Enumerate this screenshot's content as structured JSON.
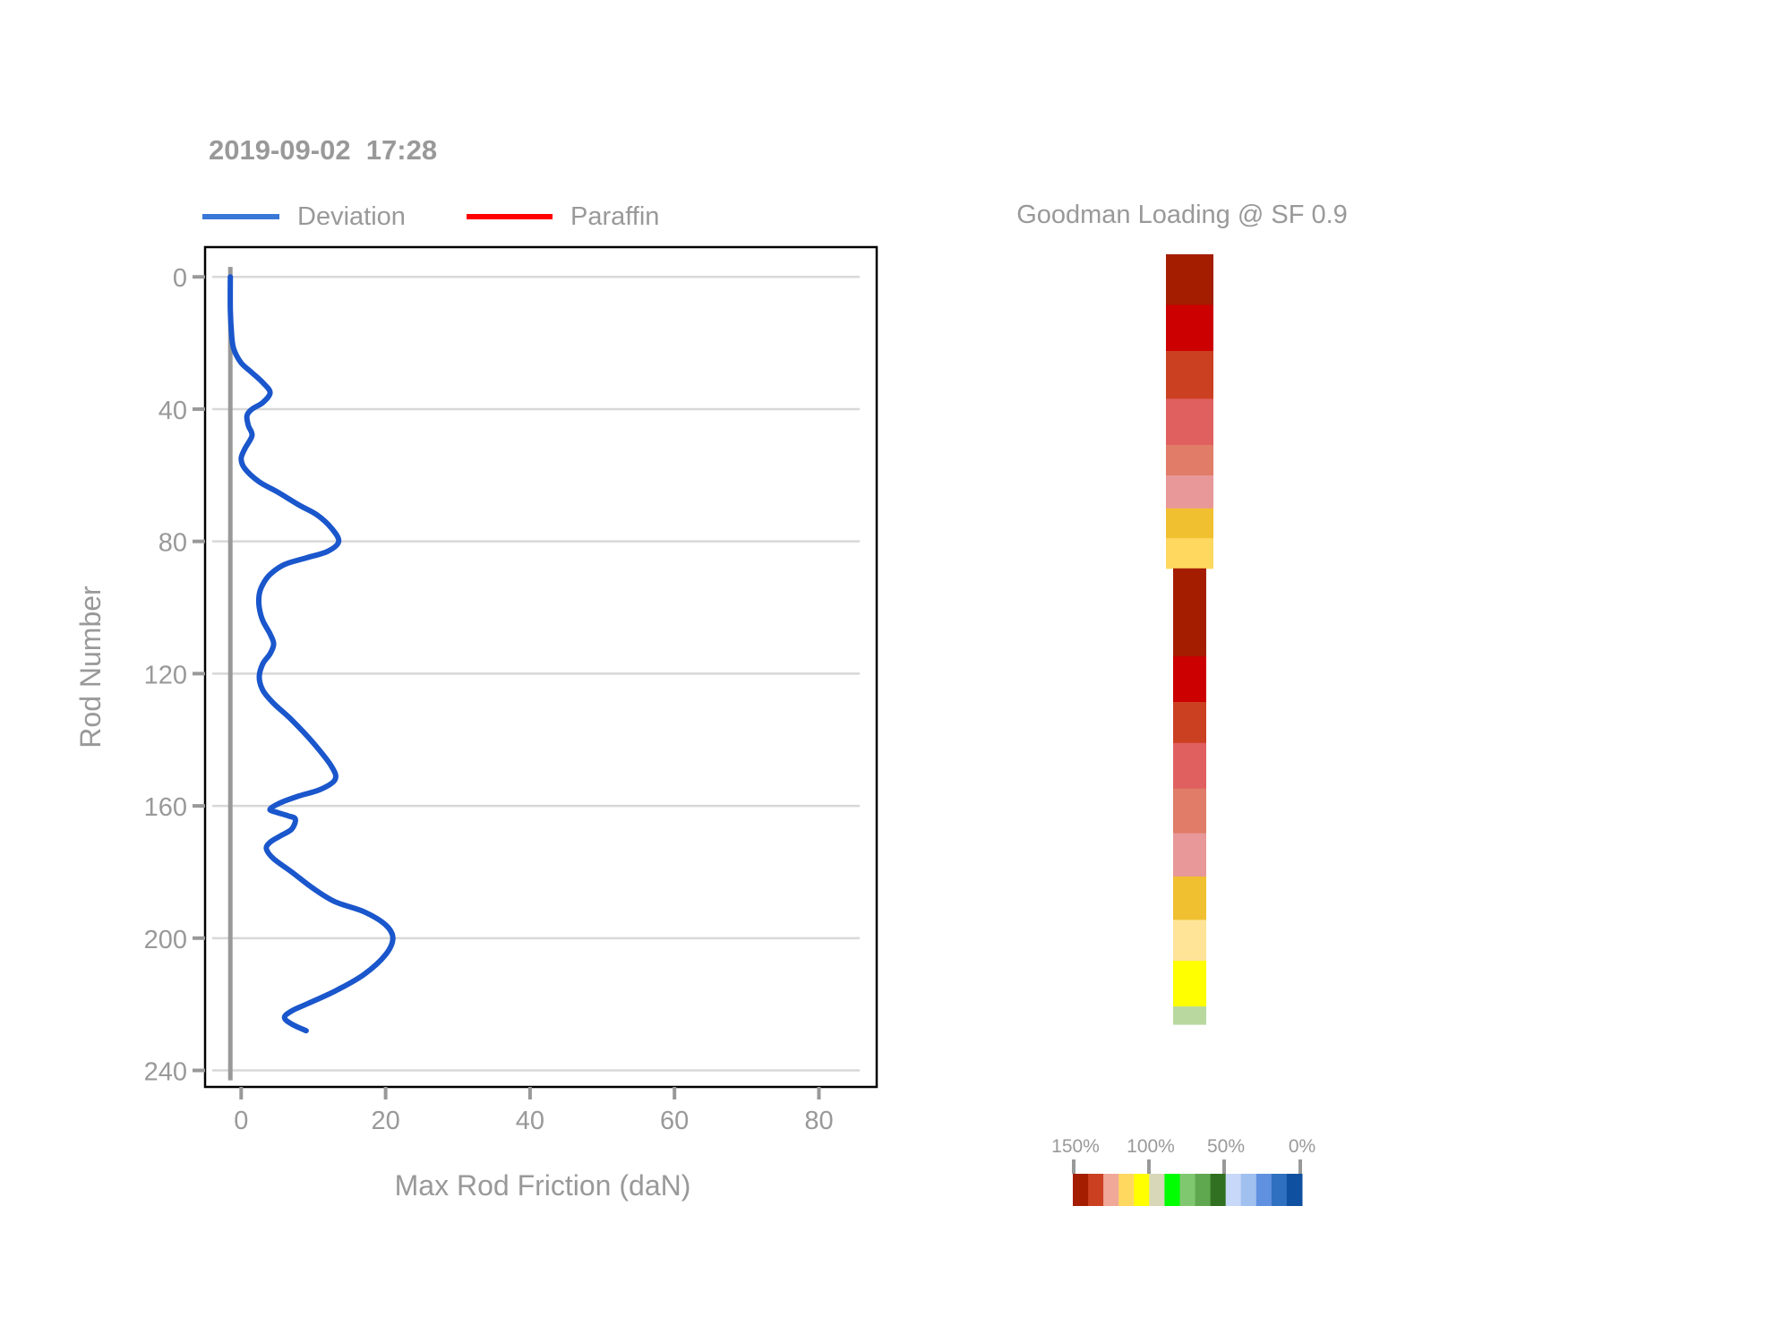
{
  "header": {
    "timestamp": "2019-09-02  17:28"
  },
  "legend": {
    "items": [
      {
        "label": "Deviation",
        "color": "#3a78d8"
      },
      {
        "label": "Paraffin",
        "color": "#ff0000"
      }
    ]
  },
  "chart_data": [
    {
      "type": "line",
      "xlabel": "Max Rod Friction (daN)",
      "ylabel": "Rod Number",
      "xlim": [
        -5,
        88
      ],
      "ylim": [
        245,
        -9
      ],
      "y_inverted": true,
      "x_ticks": [
        "0",
        "20",
        "40",
        "60",
        "80"
      ],
      "y_ticks": [
        "0",
        "40",
        "80",
        "120",
        "160",
        "200",
        "240"
      ],
      "grid": "horizontal",
      "legend_placement": "top-left",
      "reference_line": {
        "x": -1.5,
        "y": [
          -3,
          243
        ],
        "color": "#999999"
      },
      "series": [
        {
          "name": "Deviation",
          "color": "#1a56cc",
          "points": [
            [
              -1.5,
              0
            ],
            [
              -1.5,
              10
            ],
            [
              -1.3,
              18
            ],
            [
              -1,
              22
            ],
            [
              0,
              26
            ],
            [
              1.5,
              29
            ],
            [
              3,
              32
            ],
            [
              4,
              35
            ],
            [
              3,
              38
            ],
            [
              1.5,
              40
            ],
            [
              0.8,
              42
            ],
            [
              1,
              45
            ],
            [
              1.5,
              48
            ],
            [
              0.5,
              52
            ],
            [
              0,
              55
            ],
            [
              0.5,
              58
            ],
            [
              2.5,
              62
            ],
            [
              5,
              65
            ],
            [
              8,
              69
            ],
            [
              10.5,
              72
            ],
            [
              12.5,
              76
            ],
            [
              13.5,
              80
            ],
            [
              12,
              83
            ],
            [
              9,
              85
            ],
            [
              6,
              87
            ],
            [
              4,
              90
            ],
            [
              3,
              93
            ],
            [
              2.5,
              96
            ],
            [
              2.5,
              100
            ],
            [
              3,
              104
            ],
            [
              4,
              108
            ],
            [
              4.5,
              111
            ],
            [
              4,
              114
            ],
            [
              3,
              117
            ],
            [
              2.5,
              121
            ],
            [
              3,
              125
            ],
            [
              4.5,
              129
            ],
            [
              7,
              134
            ],
            [
              10,
              141
            ],
            [
              12.5,
              148
            ],
            [
              13,
              152
            ],
            [
              11,
              155
            ],
            [
              8,
              157
            ],
            [
              5.5,
              159
            ],
            [
              4,
              161
            ],
            [
              5,
              162
            ],
            [
              6.5,
              163
            ],
            [
              7.5,
              164
            ],
            [
              7,
              167
            ],
            [
              5.5,
              169
            ],
            [
              4,
              171
            ],
            [
              3.5,
              173
            ],
            [
              4.5,
              176
            ],
            [
              7,
              180
            ],
            [
              10,
              185
            ],
            [
              13,
              189
            ],
            [
              17,
              192
            ],
            [
              20,
              196
            ],
            [
              21,
              200
            ],
            [
              20,
              205
            ],
            [
              17,
              211
            ],
            [
              13,
              216
            ],
            [
              9,
              220
            ],
            [
              7,
              222
            ],
            [
              6,
              224
            ],
            [
              7,
              226
            ],
            [
              9,
              228
            ]
          ]
        },
        {
          "name": "Paraffin",
          "color": "#ff0000",
          "points": []
        }
      ]
    },
    {
      "type": "heatmap",
      "title": "Goodman Loading @ SF 0.9",
      "rod_range": [
        0,
        228
      ],
      "sections": [
        {
          "rod_start": 0,
          "rod_end": 93,
          "colors": [
            "#a51d00",
            "#cc0000",
            "#cc4022",
            "#e06060",
            "#e07c68",
            "#e89898",
            "#f0c030",
            "#ffd860"
          ],
          "fractions": [
            0.161,
            0.147,
            0.152,
            0.147,
            0.097,
            0.105,
            0.095,
            0.096
          ]
        },
        {
          "rod_start": 93,
          "rod_end": 228,
          "colors": [
            "#a51d00",
            "#cc0000",
            "#cc4022",
            "#e06060",
            "#e07c68",
            "#e89898",
            "#f0c030",
            "#ffe498",
            "#ffff00",
            "#b8d8a0"
          ],
          "fractions": [
            0.193,
            0.1,
            0.09,
            0.1,
            0.098,
            0.095,
            0.095,
            0.09,
            0.1,
            0.039
          ]
        }
      ]
    },
    {
      "type": "colorbar",
      "tick_labels": [
        "150%",
        "100%",
        "50%",
        "0%"
      ],
      "colors": [
        "#a51d00",
        "#cc4022",
        "#f0a898",
        "#ffd860",
        "#ffff00",
        "#d8d8b8",
        "#00ff00",
        "#80c870",
        "#60a850",
        "#307020",
        "#c8d8f8",
        "#a0c0f0",
        "#6090e0",
        "#3070c0",
        "#1050a0"
      ]
    }
  ]
}
